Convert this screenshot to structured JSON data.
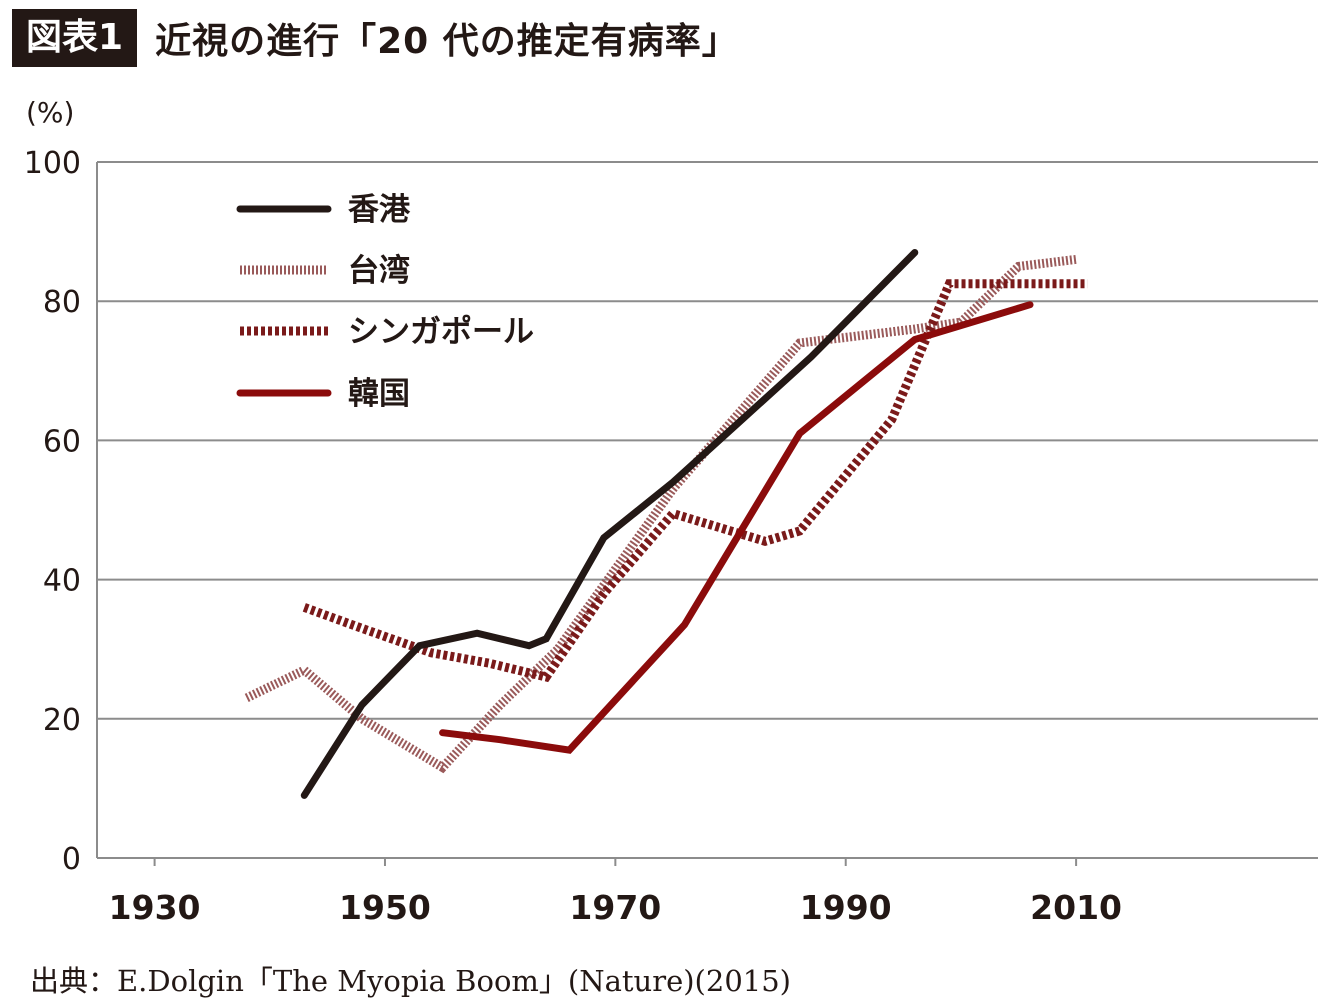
{
  "header": {
    "badge": "図表1",
    "title": "近視の進行「20 代の推定有病率」"
  },
  "unit_label": "(%)",
  "source": "出典：E.Dolgin「The Myopia Boom」(Nature)(2015)",
  "colors": {
    "text": "#231815",
    "grid": "#8c8c8c",
    "hongkong": "#231815",
    "taiwan": "#9a5a5a",
    "singapore": "#7a1a1a",
    "korea": "#8b0b0b"
  },
  "chart_data": {
    "type": "line",
    "title": "近視の進行「20 代の推定有病率」",
    "xlabel": "",
    "ylabel": "(%)",
    "xlim": [
      1925,
      2031
    ],
    "ylim": [
      0,
      100
    ],
    "x_ticks": [
      1930,
      1950,
      1970,
      1990,
      2010
    ],
    "y_ticks": [
      0,
      20,
      40,
      60,
      80,
      100
    ],
    "grid": "horizontal",
    "legend_position": "top-left",
    "series": [
      {
        "name": "香港",
        "style": "solid",
        "color": "#231815",
        "points": [
          [
            1943,
            9
          ],
          [
            1948,
            22
          ],
          [
            1953,
            30.5
          ],
          [
            1958,
            32.3
          ],
          [
            1962.5,
            30.5
          ],
          [
            1964,
            31.5
          ],
          [
            1969,
            46
          ],
          [
            1975,
            54
          ],
          [
            1981,
            63
          ],
          [
            1987,
            72
          ],
          [
            1996,
            87
          ]
        ]
      },
      {
        "name": "台湾",
        "style": "dotted-fine",
        "color": "#9a5a5a",
        "points": [
          [
            1938,
            23
          ],
          [
            1943,
            27
          ],
          [
            1948,
            20
          ],
          [
            1955,
            13
          ],
          [
            1960,
            22
          ],
          [
            1965,
            30
          ],
          [
            1975,
            53
          ],
          [
            1986,
            74
          ],
          [
            1996,
            76
          ],
          [
            2000,
            77
          ],
          [
            2005,
            85
          ],
          [
            2010,
            86
          ]
        ]
      },
      {
        "name": "シンガポール",
        "style": "dotted-coarse",
        "color": "#7a1a1a",
        "points": [
          [
            1943,
            36
          ],
          [
            1948,
            33
          ],
          [
            1954,
            29.5
          ],
          [
            1959,
            28
          ],
          [
            1964,
            26
          ],
          [
            1969,
            38
          ],
          [
            1975,
            49.5
          ],
          [
            1983,
            45.5
          ],
          [
            1986,
            47
          ],
          [
            1994,
            63
          ],
          [
            1999,
            82.5
          ],
          [
            2011,
            82.5
          ]
        ]
      },
      {
        "name": "韓国",
        "style": "solid",
        "color": "#8b0b0b",
        "points": [
          [
            1955,
            18
          ],
          [
            1960,
            17
          ],
          [
            1966,
            15.5
          ],
          [
            1976,
            33.5
          ],
          [
            1986,
            61
          ],
          [
            1996,
            74.5
          ],
          [
            2006,
            79.5
          ]
        ]
      }
    ]
  }
}
